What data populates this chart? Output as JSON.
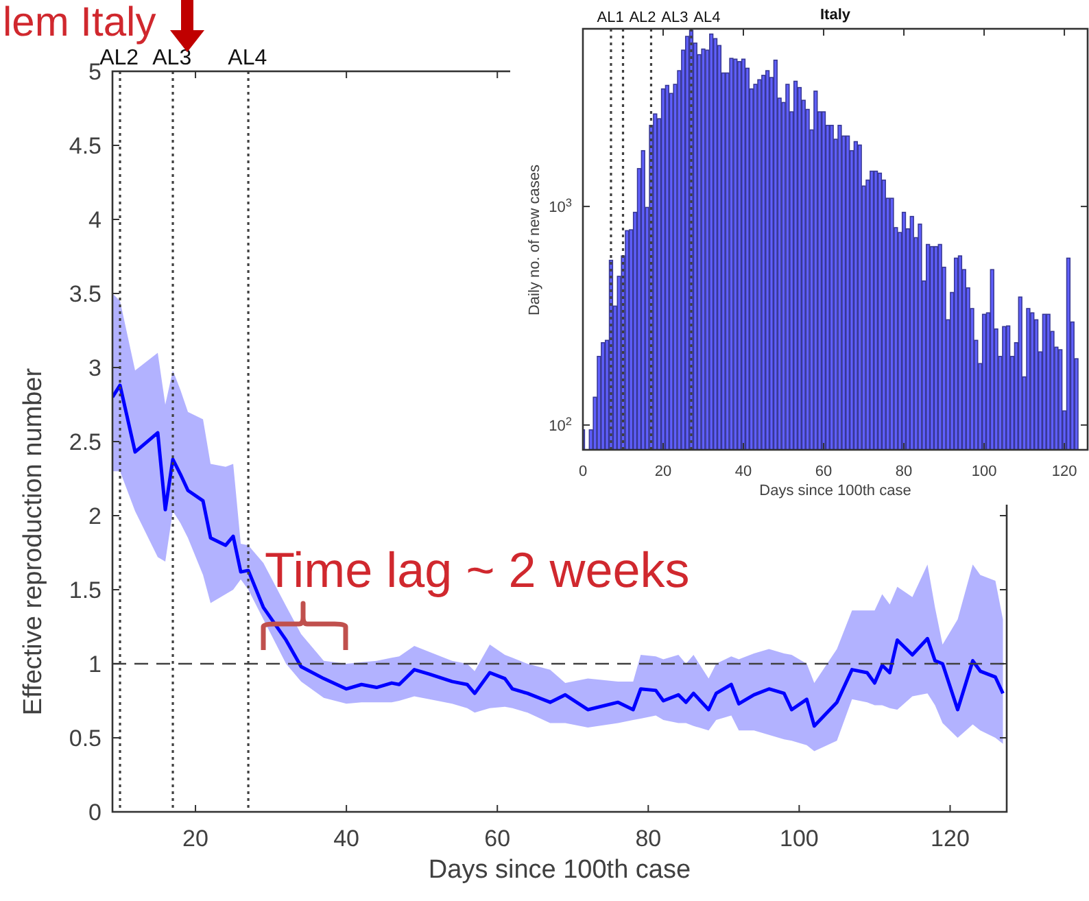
{
  "chart_data": [
    {
      "type": "line",
      "xlabel": "Days since 100th case",
      "ylabel": "Effective reproduction number",
      "xlim": [
        9,
        127.5
      ],
      "xticks": [
        20,
        40,
        60,
        80,
        100,
        120
      ],
      "ylim": [
        0,
        5
      ],
      "yticks": [
        0,
        0.5,
        1,
        1.5,
        2,
        2.5,
        3,
        3.5,
        4,
        4.5,
        5
      ],
      "grid": false,
      "x": [
        9,
        10,
        12,
        15,
        16,
        17,
        18,
        19,
        21,
        22,
        24,
        25,
        26,
        27,
        29,
        32,
        34,
        37,
        40,
        42,
        44,
        46,
        47,
        49,
        51,
        54,
        56,
        57,
        59,
        61,
        62,
        64,
        67,
        69,
        72,
        76,
        78,
        79,
        81,
        82,
        84,
        85,
        86,
        88,
        89,
        91,
        92,
        94,
        96,
        98,
        99,
        101,
        102,
        105,
        107,
        109,
        110,
        111,
        112,
        113,
        115,
        117,
        118,
        119,
        121,
        123,
        124,
        126,
        127
      ],
      "series": [
        {
          "color": "#0000ff",
          "values": [
            2.8,
            2.88,
            2.43,
            2.56,
            2.04,
            2.38,
            2.28,
            2.17,
            2.1,
            1.85,
            1.8,
            1.86,
            1.62,
            1.63,
            1.38,
            1.16,
            0.98,
            0.9,
            0.83,
            0.86,
            0.84,
            0.87,
            0.86,
            0.96,
            0.93,
            0.88,
            0.86,
            0.8,
            0.94,
            0.9,
            0.83,
            0.8,
            0.74,
            0.79,
            0.69,
            0.74,
            0.69,
            0.83,
            0.82,
            0.75,
            0.79,
            0.74,
            0.8,
            0.69,
            0.8,
            0.86,
            0.73,
            0.79,
            0.83,
            0.8,
            0.69,
            0.76,
            0.58,
            0.74,
            0.96,
            0.94,
            0.87,
            0.99,
            0.94,
            1.16,
            1.06,
            1.17,
            1.02,
            1.0,
            0.69,
            1.02,
            0.95,
            0.91,
            0.8
          ],
          "upper": [
            3.5,
            3.45,
            2.98,
            3.1,
            2.75,
            2.98,
            2.85,
            2.7,
            2.65,
            2.35,
            2.33,
            2.35,
            1.81,
            1.8,
            1.68,
            1.39,
            1.2,
            1.02,
            1.0,
            1.01,
            1.02,
            1.04,
            1.05,
            1.12,
            1.08,
            1.02,
            1.0,
            0.95,
            1.13,
            1.06,
            1.04,
            1.0,
            0.96,
            0.87,
            0.9,
            0.88,
            0.88,
            1.06,
            1.05,
            1.03,
            1.06,
            1.0,
            1.06,
            0.9,
            1.0,
            1.05,
            1.03,
            1.07,
            1.1,
            1.07,
            1.06,
            1.0,
            0.87,
            1.1,
            1.36,
            1.36,
            1.36,
            1.47,
            1.4,
            1.52,
            1.45,
            1.67,
            1.38,
            1.13,
            1.3,
            1.67,
            1.6,
            1.56,
            1.3
          ],
          "lower": [
            2.3,
            2.3,
            2.03,
            1.72,
            1.69,
            2.03,
            1.95,
            1.85,
            1.6,
            1.41,
            1.47,
            1.5,
            1.57,
            1.5,
            1.3,
            1.0,
            0.88,
            0.77,
            0.73,
            0.74,
            0.74,
            0.74,
            0.75,
            0.78,
            0.76,
            0.73,
            0.7,
            0.67,
            0.7,
            0.71,
            0.7,
            0.67,
            0.6,
            0.6,
            0.57,
            0.6,
            0.62,
            0.63,
            0.65,
            0.62,
            0.6,
            0.6,
            0.58,
            0.55,
            0.62,
            0.65,
            0.55,
            0.55,
            0.52,
            0.49,
            0.48,
            0.45,
            0.41,
            0.48,
            0.76,
            0.74,
            0.72,
            0.72,
            0.7,
            0.69,
            0.78,
            0.8,
            0.72,
            0.6,
            0.5,
            0.59,
            0.55,
            0.5,
            0.46
          ]
        }
      ],
      "ref_lines": [
        {
          "axis": "x",
          "value": 10,
          "label": "AL2",
          "line_style": "dotted",
          "color": "#404040"
        },
        {
          "axis": "x",
          "value": 17,
          "label": "AL3",
          "line_style": "dotted",
          "color": "#404040"
        },
        {
          "axis": "x",
          "value": 27,
          "label": "AL4",
          "line_style": "dotted",
          "color": "#404040"
        },
        {
          "axis": "y",
          "value": 1,
          "label": null,
          "line_style": "dashed",
          "color": "#404040"
        }
      ],
      "annotations": [
        "lem Italy",
        "Time lag ~ 2 weeks"
      ]
    },
    {
      "type": "bar",
      "title": "Italy",
      "xlabel": "Days since 100th case",
      "ylabel": "Daily no. of new cases",
      "log": true,
      "xlim": [
        0,
        125.8
      ],
      "xticks": [
        0,
        20,
        40,
        60,
        80,
        100,
        120
      ],
      "ylim": [
        77,
        6500
      ],
      "yticks": [
        {
          "value": 100,
          "label": "10$^{2}$"
        },
        {
          "value": 1000,
          "label": "10$^{3}$"
        }
      ],
      "grid": false,
      "x": [
        0,
        2,
        3,
        4,
        5,
        6,
        7,
        8,
        9,
        10,
        11,
        12,
        13,
        14,
        15,
        16,
        17,
        18,
        19,
        20,
        21,
        22,
        23,
        24,
        25,
        26,
        27,
        28,
        29,
        30,
        31,
        32,
        33,
        34,
        35,
        36,
        37,
        38,
        39,
        40,
        41,
        42,
        43,
        44,
        45,
        46,
        47,
        48,
        49,
        50,
        51,
        52,
        53,
        54,
        55,
        56,
        57,
        58,
        59,
        60,
        61,
        62,
        63,
        64,
        65,
        66,
        67,
        68,
        69,
        70,
        71,
        72,
        73,
        74,
        75,
        76,
        77,
        78,
        79,
        80,
        81,
        82,
        83,
        84,
        85,
        86,
        87,
        88,
        89,
        90,
        91,
        92,
        93,
        94,
        95,
        96,
        97,
        98,
        99,
        100,
        101,
        102,
        103,
        104,
        105,
        106,
        107,
        108,
        109,
        110,
        111,
        112,
        113,
        114,
        115,
        116,
        117,
        118,
        119,
        120,
        121,
        122,
        123
      ],
      "series": [
        {
          "color": "#6060ff",
          "values": [
            95,
            95,
            134,
            206,
            238,
            244,
            567,
            350,
            479,
            594,
            775,
            782,
            940,
            1490,
            1800,
            990,
            2350,
            2650,
            2520,
            3450,
            3580,
            3290,
            3620,
            4180,
            5190,
            6000,
            6400,
            5590,
            4950,
            5250,
            5190,
            6150,
            5860,
            5450,
            4080,
            4080,
            4760,
            4720,
            4600,
            4720,
            4290,
            3450,
            3620,
            3800,
            3980,
            4180,
            3890,
            4670,
            3130,
            2990,
            3620,
            2710,
            3740,
            3500,
            3060,
            2780,
            2240,
            3370,
            2710,
            2710,
            2350,
            2350,
            2030,
            2350,
            2100,
            2100,
            1800,
            1980,
            1910,
            1240,
            1320,
            1450,
            1450,
            1420,
            1320,
            1090,
            1090,
            800,
            760,
            940,
            790,
            900,
            720,
            830,
            456,
            670,
            655,
            655,
            670,
            527,
            303,
            404,
            580,
            594,
            514,
            424,
            341,
            244,
            191,
            321,
            326,
            514,
            275,
            206,
            282,
            284,
            206,
            238,
            385,
            166,
            341,
            326,
            303,
            216,
            321,
            321,
            268,
            227,
            221,
            116,
            580,
            296,
            201
          ]
        }
      ],
      "ref_lines": [
        {
          "axis": "x",
          "value": 7,
          "label": "AL1",
          "line_style": "dotted",
          "color": "#404040"
        },
        {
          "axis": "x",
          "value": 10,
          "label": "AL2",
          "line_style": "dotted",
          "color": "#404040"
        },
        {
          "axis": "x",
          "value": 17,
          "label": "AL3",
          "line_style": "dotted",
          "color": "#404040"
        },
        {
          "axis": "x",
          "value": 27,
          "label": "AL4",
          "line_style": "dotted",
          "color": "#404040"
        }
      ]
    }
  ]
}
